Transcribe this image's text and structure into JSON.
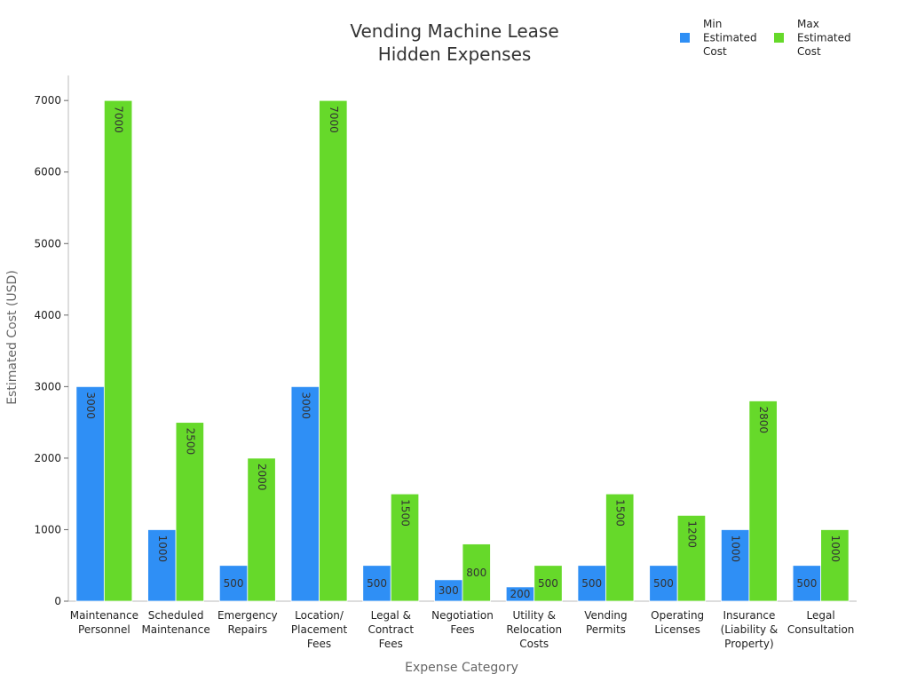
{
  "chart_data": {
    "type": "bar",
    "title": [
      "Vending Machine Lease",
      "Hidden Expenses"
    ],
    "xlabel": "Expense Category",
    "ylabel": "Estimated Cost (USD)",
    "ylim": [
      0,
      7350
    ],
    "yticks": [
      0,
      1000,
      2000,
      3000,
      4000,
      5000,
      6000,
      7000
    ],
    "grid": false,
    "legend_position": "top-right",
    "categories": [
      [
        "Maintenance",
        "Personnel"
      ],
      [
        "Scheduled",
        "Maintenance"
      ],
      [
        "Emergency",
        "Repairs"
      ],
      [
        "Location/",
        "Placement",
        "Fees"
      ],
      [
        "Legal &",
        "Contract",
        "Fees"
      ],
      [
        "Negotiation",
        "Fees"
      ],
      [
        "Utility &",
        "Relocation",
        "Costs"
      ],
      [
        "Vending",
        "Permits"
      ],
      [
        "Operating",
        "Licenses"
      ],
      [
        "Insurance",
        "(Liability &",
        "Property)"
      ],
      [
        "Legal",
        "Consultation"
      ]
    ],
    "series": [
      {
        "name": [
          "Min",
          "Estimated",
          "Cost"
        ],
        "color": "#2f8ff5",
        "values": [
          3000,
          1000,
          500,
          3000,
          500,
          300,
          200,
          500,
          500,
          1000,
          500
        ]
      },
      {
        "name": [
          "Max",
          "Estimated",
          "Cost"
        ],
        "color": "#66d92a",
        "values": [
          7000,
          2500,
          2000,
          7000,
          1500,
          800,
          500,
          1500,
          1200,
          2800,
          1000
        ]
      }
    ]
  }
}
